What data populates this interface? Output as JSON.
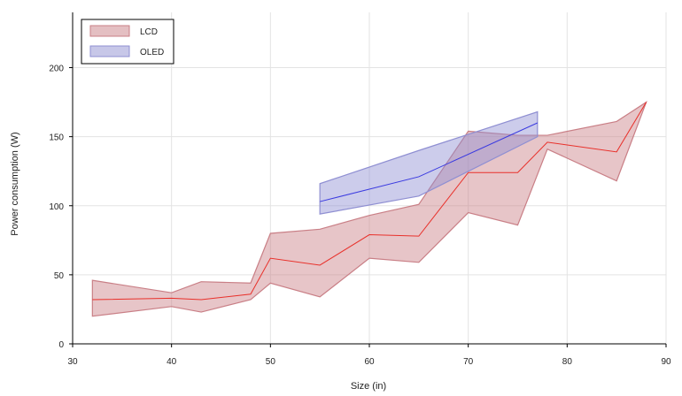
{
  "chart_data": {
    "type": "area",
    "xlabel": "Size (in)",
    "ylabel": "Power consumption (W)",
    "xlim": [
      30,
      90
    ],
    "ylim": [
      0,
      240
    ],
    "xticks": [
      30,
      40,
      50,
      60,
      70,
      80,
      90
    ],
    "yticks": [
      0,
      50,
      100,
      150,
      200
    ],
    "grid": true,
    "legend_position": "top-left",
    "series": [
      {
        "name": "LCD",
        "line_color": "#e8302a",
        "fill_color": "#c97f86",
        "x": [
          32,
          40,
          43,
          48,
          50,
          55,
          60,
          65,
          70,
          75,
          78,
          85,
          88
        ],
        "y": [
          32,
          33,
          32,
          36,
          62,
          57,
          79,
          78,
          124,
          124,
          146,
          139,
          175
        ],
        "lower": [
          20,
          27,
          23,
          32,
          44,
          34,
          62,
          59,
          95,
          86,
          141,
          118,
          175
        ],
        "upper": [
          46,
          37,
          45,
          44,
          80,
          83,
          93,
          101,
          154,
          151,
          151,
          161,
          175
        ]
      },
      {
        "name": "OLED",
        "line_color": "#3a3ae0",
        "fill_color": "#8f8fd2",
        "x": [
          55,
          65,
          77
        ],
        "y": [
          103,
          121,
          160
        ],
        "lower": [
          94,
          107,
          150
        ],
        "upper": [
          116,
          140,
          168
        ]
      }
    ]
  }
}
